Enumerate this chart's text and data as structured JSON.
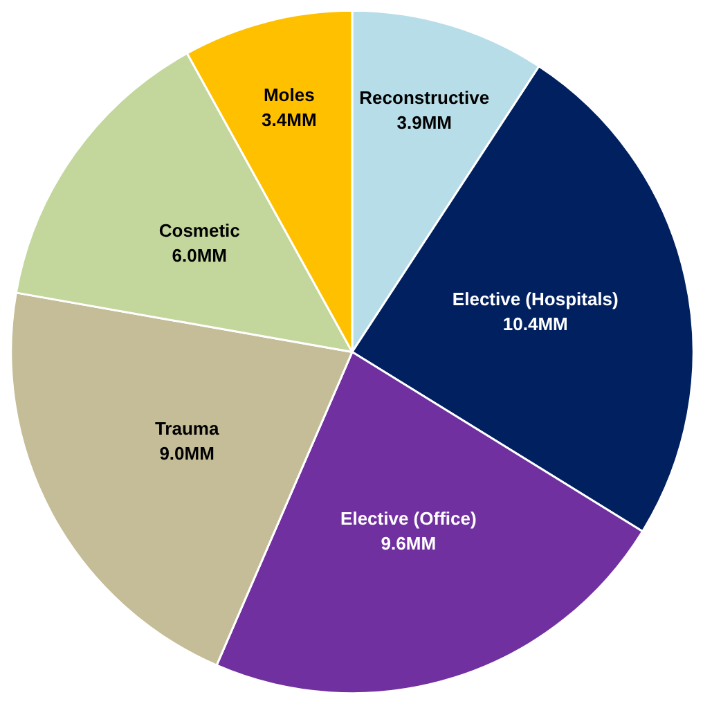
{
  "chart_data": {
    "type": "pie",
    "categories": [
      "Reconstructive",
      "Elective (Hospitals)",
      "Elective (Office)",
      "Trauma",
      "Cosmetic",
      "Moles"
    ],
    "values": [
      3.9,
      10.4,
      9.6,
      9.0,
      6.0,
      3.4
    ],
    "value_labels": [
      "3.9MM",
      "10.4MM",
      "9.6MM",
      "9.0MM",
      "6.0MM",
      "3.4MM"
    ],
    "colors": [
      "#b7dde8",
      "#002060",
      "#7030a0",
      "#c4bd97",
      "#c3d69b",
      "#ffc000"
    ]
  }
}
